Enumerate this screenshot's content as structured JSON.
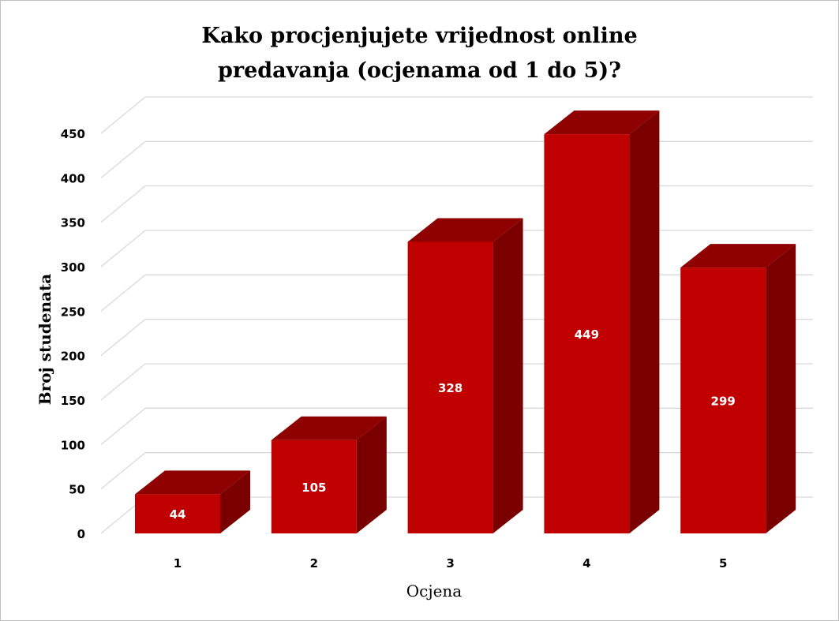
{
  "chart_data": {
    "type": "bar",
    "style": "3d-column",
    "title_lines": [
      "Kako procjenjujete vrijednost online",
      "predavanja (ocjenama od 1 do 5)?"
    ],
    "xlabel": "Ocjena",
    "ylabel": "Broj studenata",
    "categories": [
      "1",
      "2",
      "3",
      "4",
      "5"
    ],
    "values": [
      44,
      105,
      328,
      449,
      299
    ],
    "data_labels": [
      "44",
      "105",
      "328",
      "449",
      "299"
    ],
    "ylim": [
      0,
      450
    ],
    "yticks": [
      "0",
      "50",
      "100",
      "150",
      "200",
      "250",
      "300",
      "350",
      "400",
      "450"
    ],
    "grid": true,
    "legend": "none",
    "colors": {
      "front": "#c00000",
      "top": "#8f0000",
      "side": "#7a0000",
      "grid": "#d9d9d9"
    }
  }
}
